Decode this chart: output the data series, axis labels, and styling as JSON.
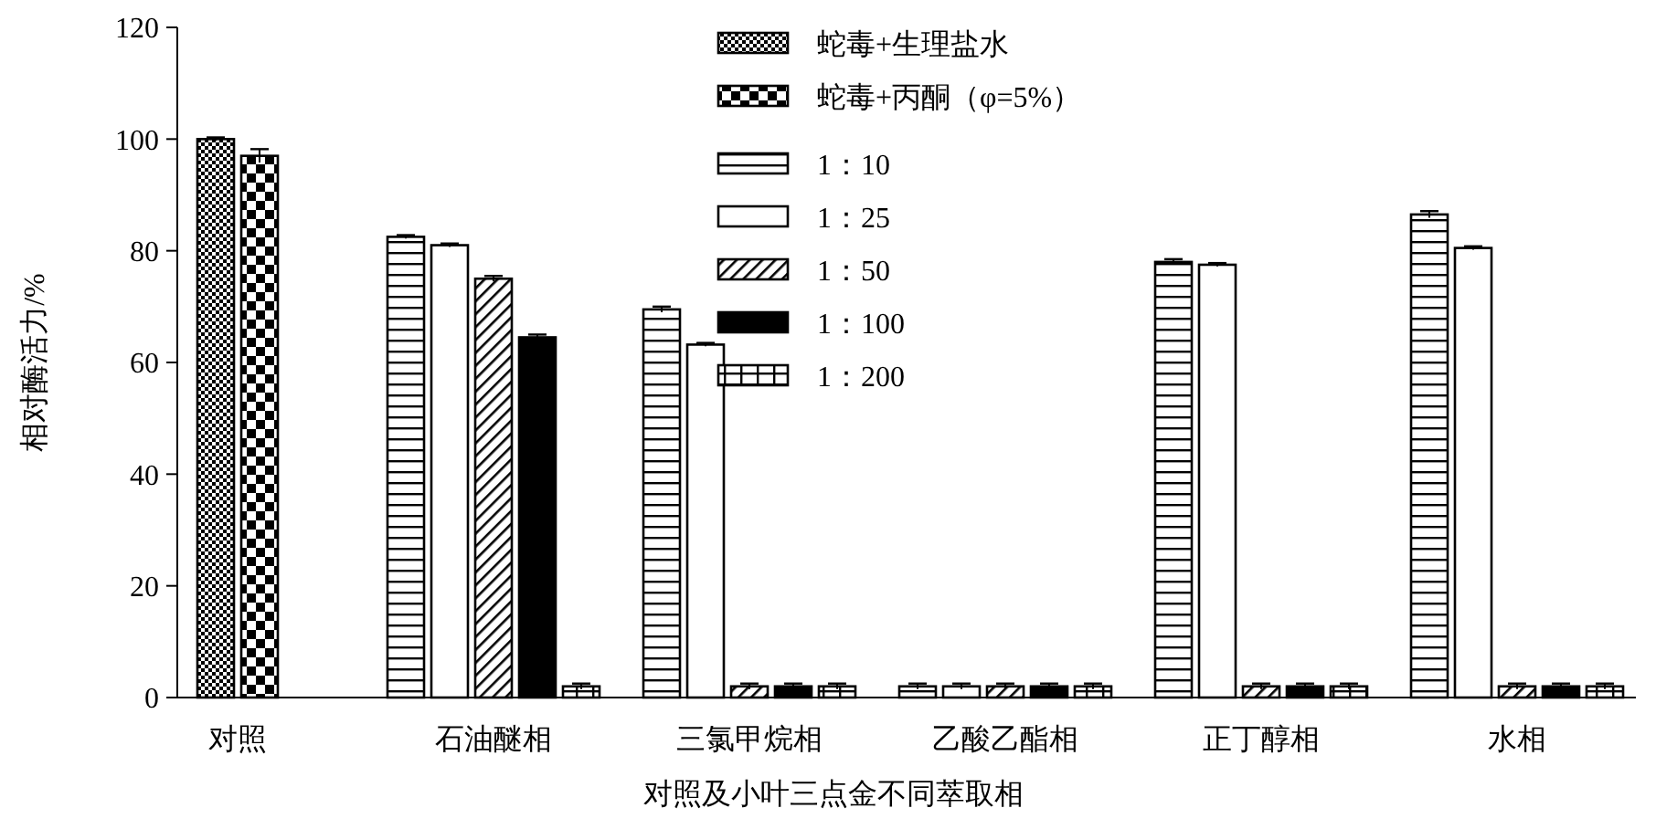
{
  "chart_data": {
    "type": "bar",
    "xlabel": "对照及小叶三点金不同萃取相",
    "ylabel": "相对酶活力/%",
    "categories": [
      "对照",
      "石油醚相",
      "三氯甲烷相",
      "乙酸乙酯相",
      "正丁醇相",
      "水相"
    ],
    "series": [
      {
        "name": "蛇毒+生理盐水",
        "color": "#000000",
        "values": [
          100,
          null,
          null,
          null,
          null,
          null
        ],
        "errors": [
          0.3,
          null,
          null,
          null,
          null,
          null
        ]
      },
      {
        "name": "蛇毒+丙酮（φ=5%）",
        "color": "#000000",
        "values": [
          97,
          null,
          null,
          null,
          null,
          null
        ],
        "errors": [
          1.2,
          null,
          null,
          null,
          null,
          null
        ]
      },
      {
        "name": "1：10",
        "color": "#000000",
        "values": [
          null,
          82.5,
          69.5,
          2,
          78,
          86.5
        ],
        "errors": [
          null,
          0.3,
          0.5,
          0.5,
          0.5,
          0.6
        ]
      },
      {
        "name": "1：25",
        "color": "#000000",
        "values": [
          null,
          81,
          63.2,
          2,
          77.5,
          80.5
        ],
        "errors": [
          null,
          0.3,
          0.3,
          0.5,
          0.3,
          0.3
        ]
      },
      {
        "name": "1：50",
        "color": "#000000",
        "values": [
          null,
          75,
          2,
          2,
          2,
          2
        ],
        "errors": [
          null,
          0.5,
          0.5,
          0.5,
          0.5,
          0.5
        ]
      },
      {
        "name": "1：100",
        "color": "#000000",
        "values": [
          null,
          64.5,
          2,
          2,
          2,
          2
        ],
        "errors": [
          null,
          0.5,
          0.5,
          0.5,
          0.5,
          0.5
        ]
      },
      {
        "name": "1：200",
        "color": "#000000",
        "values": [
          null,
          2,
          2,
          2,
          2,
          2
        ],
        "errors": [
          null,
          0.5,
          0.5,
          0.5,
          0.5,
          0.5
        ]
      }
    ],
    "ylim": [
      0,
      120
    ],
    "yticks": [
      0,
      20,
      40,
      60,
      80,
      100,
      120
    ],
    "grid": false,
    "legend": "top"
  }
}
